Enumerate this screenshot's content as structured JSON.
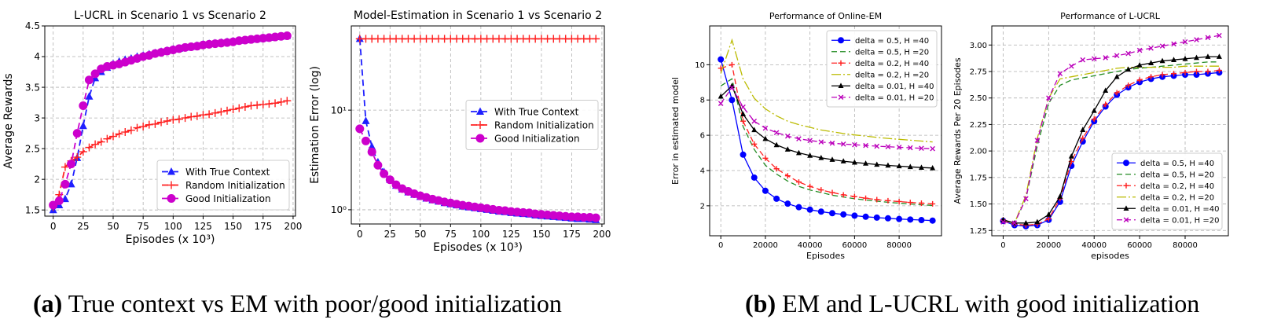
{
  "captions": {
    "a_label": "(a)",
    "a_text": " True context vs EM with poor/good initialization",
    "b_label": "(b)",
    "b_text": " EM and L-UCRL with good initialization"
  },
  "chart_data": [
    {
      "id": "lucrl-scenario",
      "type": "line",
      "title": "L-UCRL in Scenario 1 vs Scenario 2",
      "xlabel": "Episodes (x 10³)",
      "ylabel": "Average Rewards",
      "xlim": [
        -7,
        202
      ],
      "ylim": [
        1.4,
        4.5
      ],
      "xticks": [
        0,
        25,
        50,
        75,
        100,
        125,
        150,
        175,
        200
      ],
      "yticks": [
        1.5,
        2.0,
        2.5,
        3.0,
        3.5,
        4.0,
        4.5
      ],
      "grid": true,
      "legend": "lower-right",
      "x": [
        0,
        5,
        10,
        15,
        20,
        25,
        30,
        35,
        40,
        45,
        50,
        55,
        60,
        65,
        70,
        75,
        80,
        85,
        90,
        95,
        100,
        105,
        110,
        115,
        120,
        125,
        130,
        135,
        140,
        145,
        150,
        155,
        160,
        165,
        170,
        175,
        180,
        185,
        190,
        195
      ],
      "series": [
        {
          "name": "With True Context",
          "color": "#1f1fff",
          "dash": "8,5",
          "marker": "triangle",
          "values": [
            1.5,
            1.58,
            1.68,
            1.92,
            2.35,
            2.87,
            3.35,
            3.65,
            3.75,
            3.82,
            3.88,
            3.92,
            3.95,
            3.97,
            4.0,
            4.02,
            4.04,
            4.06,
            4.08,
            4.1,
            4.12,
            4.13,
            4.15,
            4.16,
            4.18,
            4.2,
            4.21,
            4.22,
            4.23,
            4.24,
            4.25,
            4.26,
            4.27,
            4.28,
            4.29,
            4.3,
            4.31,
            4.32,
            4.33,
            4.34
          ]
        },
        {
          "name": "Random Initialization",
          "color": "#ff2020",
          "dash": "8,5",
          "marker": "plus",
          "values": [
            1.55,
            1.75,
            2.2,
            2.3,
            2.36,
            2.45,
            2.52,
            2.57,
            2.61,
            2.66,
            2.7,
            2.74,
            2.77,
            2.8,
            2.84,
            2.86,
            2.89,
            2.9,
            2.93,
            2.95,
            2.97,
            2.98,
            3.0,
            3.02,
            3.03,
            3.05,
            3.06,
            3.08,
            3.1,
            3.12,
            3.14,
            3.16,
            3.18,
            3.2,
            3.21,
            3.22,
            3.23,
            3.24,
            3.26,
            3.28
          ]
        },
        {
          "name": "Good Initialization",
          "color": "#cc00cc",
          "dash": "8,5",
          "marker": "circle",
          "values": [
            1.58,
            1.65,
            1.92,
            2.25,
            2.75,
            3.2,
            3.62,
            3.72,
            3.8,
            3.84,
            3.86,
            3.88,
            3.91,
            3.94,
            3.97,
            4.0,
            4.02,
            4.05,
            4.07,
            4.09,
            4.11,
            4.13,
            4.15,
            4.16,
            4.17,
            4.19,
            4.2,
            4.21,
            4.22,
            4.23,
            4.24,
            4.26,
            4.27,
            4.28,
            4.29,
            4.3,
            4.31,
            4.32,
            4.33,
            4.34
          ]
        }
      ]
    },
    {
      "id": "model-estimation",
      "type": "line",
      "title": "Model-Estimation in Scenario 1 vs Scenario 2",
      "xlabel": "Episodes (x 10³)",
      "ylabel": "Estimation Error (log)",
      "yscale": "log",
      "xlim": [
        -7,
        202
      ],
      "ylim": [
        0.72,
        70
      ],
      "xticks": [
        0,
        25,
        50,
        75,
        100,
        125,
        150,
        175,
        200
      ],
      "yticks": [
        1,
        10
      ],
      "yticklabels": [
        "10⁰",
        "10¹"
      ],
      "grid": true,
      "legend": "center-right",
      "x": [
        0,
        5,
        10,
        15,
        20,
        25,
        30,
        35,
        40,
        45,
        50,
        55,
        60,
        65,
        70,
        75,
        80,
        85,
        90,
        95,
        100,
        105,
        110,
        115,
        120,
        125,
        130,
        135,
        140,
        145,
        150,
        155,
        160,
        165,
        170,
        175,
        180,
        185,
        190,
        195
      ],
      "series": [
        {
          "name": "With True Context",
          "color": "#1f1fff",
          "dash": "8,5",
          "marker": "triangle",
          "values": [
            52,
            7.8,
            4.3,
            3.0,
            2.4,
            2.0,
            1.75,
            1.6,
            1.5,
            1.42,
            1.35,
            1.3,
            1.25,
            1.21,
            1.17,
            1.14,
            1.11,
            1.08,
            1.06,
            1.04,
            1.02,
            1.0,
            0.98,
            0.96,
            0.95,
            0.93,
            0.92,
            0.91,
            0.9,
            0.88,
            0.87,
            0.86,
            0.85,
            0.84,
            0.83,
            0.82,
            0.81,
            0.81,
            0.8,
            0.79
          ]
        },
        {
          "name": "Random Initialization",
          "color": "#ff2020",
          "dash": "8,5",
          "marker": "plus",
          "values": [
            52,
            52,
            52,
            52,
            52,
            52,
            52,
            52,
            52,
            52,
            52,
            52,
            52,
            52,
            52,
            52,
            52,
            52,
            52,
            52,
            52,
            52,
            52,
            52,
            52,
            52,
            52,
            52,
            52,
            52,
            52,
            52,
            52,
            52,
            52,
            52,
            52,
            52,
            52,
            52
          ]
        },
        {
          "name": "Good Initialization",
          "color": "#cc00cc",
          "dash": "8,5",
          "marker": "circle",
          "values": [
            6.5,
            4.9,
            3.8,
            2.8,
            2.3,
            2.0,
            1.78,
            1.63,
            1.53,
            1.45,
            1.38,
            1.33,
            1.28,
            1.24,
            1.2,
            1.17,
            1.14,
            1.11,
            1.09,
            1.07,
            1.05,
            1.03,
            1.01,
            0.99,
            0.98,
            0.96,
            0.95,
            0.94,
            0.93,
            0.91,
            0.9,
            0.89,
            0.88,
            0.87,
            0.86,
            0.85,
            0.85,
            0.84,
            0.84,
            0.83
          ]
        }
      ]
    },
    {
      "id": "online-em",
      "type": "line",
      "title": "Performance of Online-EM",
      "xlabel": "Episodes",
      "ylabel": "Error in estimated model",
      "xlim": [
        -5000,
        99000
      ],
      "ylim": [
        0.3,
        12.2
      ],
      "xticks": [
        0,
        20000,
        40000,
        60000,
        80000
      ],
      "yticks": [
        2,
        4,
        6,
        8,
        10
      ],
      "grid": true,
      "legend": "upper-right",
      "x": [
        0,
        5000,
        10000,
        15000,
        20000,
        25000,
        30000,
        35000,
        40000,
        45000,
        50000,
        55000,
        60000,
        65000,
        70000,
        75000,
        80000,
        85000,
        90000,
        95000
      ],
      "series": [
        {
          "name": "delta = 0.5, H =40",
          "color": "#0000ff",
          "dash": "",
          "marker": "circle",
          "values": [
            10.3,
            8.0,
            4.9,
            3.6,
            2.85,
            2.4,
            2.12,
            1.92,
            1.78,
            1.67,
            1.58,
            1.51,
            1.44,
            1.38,
            1.33,
            1.29,
            1.25,
            1.22,
            1.19,
            1.16
          ]
        },
        {
          "name": "delta = 0.5, H =20",
          "color": "#228b22",
          "dash": "7,4",
          "marker": "none",
          "values": [
            8.8,
            9.2,
            6.5,
            5.2,
            4.3,
            3.8,
            3.4,
            3.1,
            2.9,
            2.75,
            2.6,
            2.5,
            2.4,
            2.33,
            2.26,
            2.2,
            2.15,
            2.1,
            2.06,
            2.02
          ]
        },
        {
          "name": "delta = 0.2, H =40",
          "color": "#ff2020",
          "dash": "7,4",
          "marker": "plus",
          "values": [
            9.8,
            10.0,
            6.8,
            5.5,
            4.7,
            4.1,
            3.7,
            3.35,
            3.1,
            2.9,
            2.75,
            2.62,
            2.52,
            2.43,
            2.35,
            2.29,
            2.24,
            2.19,
            2.15,
            2.11
          ]
        },
        {
          "name": "delta = 0.2, H =20",
          "color": "#bbbb00",
          "dash": "12,3,2,3",
          "marker": "none",
          "values": [
            9.5,
            11.4,
            9.2,
            8.1,
            7.5,
            7.1,
            6.8,
            6.6,
            6.45,
            6.3,
            6.2,
            6.1,
            6.02,
            5.95,
            5.88,
            5.82,
            5.77,
            5.72,
            5.67,
            5.62
          ]
        },
        {
          "name": "delta = 0.01, H =40",
          "color": "#000000",
          "dash": "",
          "marker": "triangle",
          "values": [
            8.2,
            8.8,
            7.2,
            6.3,
            5.8,
            5.45,
            5.2,
            5.0,
            4.85,
            4.72,
            4.62,
            4.53,
            4.46,
            4.4,
            4.34,
            4.29,
            4.25,
            4.21,
            4.17,
            4.14
          ]
        },
        {
          "name": "delta = 0.01, H =20",
          "color": "#bb00bb",
          "dash": "7,4",
          "marker": "x",
          "values": [
            7.8,
            8.7,
            7.6,
            6.8,
            6.4,
            6.15,
            5.95,
            5.8,
            5.7,
            5.62,
            5.55,
            5.5,
            5.46,
            5.42,
            5.38,
            5.35,
            5.32,
            5.29,
            5.26,
            5.24
          ]
        }
      ]
    },
    {
      "id": "lucrl-performance",
      "type": "line",
      "title": "Performance of L-UCRL",
      "xlabel": "episodes",
      "ylabel": "Average Rewards Per 20 Episodes",
      "xlim": [
        -5000,
        99000
      ],
      "ylim": [
        1.2,
        3.18
      ],
      "xticks": [
        0,
        20000,
        40000,
        60000,
        80000
      ],
      "yticks": [
        1.25,
        1.5,
        1.75,
        2.0,
        2.25,
        2.5,
        2.75,
        3.0
      ],
      "yticklabels": [
        "1.25",
        "1.50",
        "1.75",
        "2.00",
        "2.25",
        "2.50",
        "2.75",
        "3.00"
      ],
      "grid": true,
      "legend": "lower-right",
      "x": [
        0,
        5000,
        10000,
        15000,
        20000,
        25000,
        30000,
        35000,
        40000,
        45000,
        50000,
        55000,
        60000,
        65000,
        70000,
        75000,
        80000,
        85000,
        90000,
        95000
      ],
      "series": [
        {
          "name": "delta = 0.5, H =40",
          "color": "#0000ff",
          "dash": "",
          "marker": "circle",
          "values": [
            1.34,
            1.3,
            1.29,
            1.3,
            1.35,
            1.52,
            1.86,
            2.09,
            2.28,
            2.42,
            2.53,
            2.6,
            2.65,
            2.68,
            2.7,
            2.71,
            2.72,
            2.72,
            2.73,
            2.74
          ]
        },
        {
          "name": "delta = 0.5, H =20",
          "color": "#228b22",
          "dash": "7,4",
          "marker": "none",
          "values": [
            1.35,
            1.32,
            1.55,
            2.05,
            2.45,
            2.62,
            2.67,
            2.69,
            2.71,
            2.73,
            2.75,
            2.77,
            2.78,
            2.79,
            2.8,
            2.81,
            2.82,
            2.83,
            2.84,
            2.84
          ]
        },
        {
          "name": "delta = 0.2, H =40",
          "color": "#ff2020",
          "dash": "7,4",
          "marker": "plus",
          "values": [
            1.35,
            1.31,
            1.3,
            1.31,
            1.36,
            1.55,
            1.9,
            2.12,
            2.3,
            2.44,
            2.55,
            2.62,
            2.67,
            2.7,
            2.72,
            2.73,
            2.74,
            2.75,
            2.75,
            2.76
          ]
        },
        {
          "name": "delta = 0.2, H =20",
          "color": "#bbbb00",
          "dash": "12,3,2,3",
          "marker": "none",
          "values": [
            1.34,
            1.32,
            1.58,
            2.12,
            2.5,
            2.68,
            2.7,
            2.72,
            2.74,
            2.76,
            2.78,
            2.79,
            2.79,
            2.79,
            2.79,
            2.79,
            2.8,
            2.8,
            2.8,
            2.8
          ]
        },
        {
          "name": "delta = 0.01, H =40",
          "color": "#000000",
          "dash": "",
          "marker": "triangle",
          "values": [
            1.35,
            1.32,
            1.32,
            1.33,
            1.4,
            1.57,
            1.95,
            2.2,
            2.38,
            2.57,
            2.7,
            2.77,
            2.81,
            2.83,
            2.85,
            2.86,
            2.87,
            2.88,
            2.89,
            2.89
          ]
        },
        {
          "name": "delta = 0.01, H =20",
          "color": "#bb00bb",
          "dash": "7,4",
          "marker": "x",
          "values": [
            1.33,
            1.32,
            1.55,
            2.1,
            2.5,
            2.73,
            2.8,
            2.86,
            2.87,
            2.88,
            2.9,
            2.92,
            2.95,
            2.97,
            2.99,
            3.01,
            3.03,
            3.05,
            3.07,
            3.09
          ]
        }
      ]
    }
  ]
}
